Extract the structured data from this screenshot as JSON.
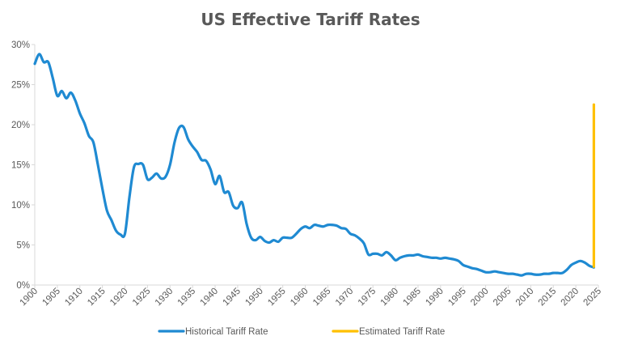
{
  "chart_data": {
    "type": "line",
    "title": "US Effective Tariff Rates",
    "xlabel": "",
    "ylabel": "",
    "xlim": [
      1900,
      2025
    ],
    "ylim": [
      0,
      30
    ],
    "x_ticks": [
      "1900",
      "1905",
      "1910",
      "1915",
      "1920",
      "1925",
      "1930",
      "1935",
      "1940",
      "1945",
      "1950",
      "1955",
      "1960",
      "1965",
      "1970",
      "1975",
      "1980",
      "1985",
      "1990",
      "1995",
      "2000",
      "2005",
      "2010",
      "2015",
      "2020",
      "2025"
    ],
    "y_ticks": [
      "0%",
      "5%",
      "10%",
      "15%",
      "20%",
      "25%",
      "30%"
    ],
    "grid": false,
    "legend_position": "bottom",
    "series": [
      {
        "name": "Historical Tariff Rate",
        "color": "#1f8ad2",
        "x": [
          1900,
          1901,
          1902,
          1903,
          1904,
          1905,
          1906,
          1907,
          1908,
          1909,
          1910,
          1911,
          1912,
          1913,
          1914,
          1915,
          1916,
          1917,
          1918,
          1919,
          1920,
          1921,
          1922,
          1923,
          1924,
          1925,
          1926,
          1927,
          1928,
          1929,
          1930,
          1931,
          1932,
          1933,
          1934,
          1935,
          1936,
          1937,
          1938,
          1939,
          1940,
          1941,
          1942,
          1943,
          1944,
          1945,
          1946,
          1947,
          1948,
          1949,
          1950,
          1951,
          1952,
          1953,
          1954,
          1955,
          1956,
          1957,
          1958,
          1959,
          1960,
          1961,
          1962,
          1963,
          1964,
          1965,
          1966,
          1967,
          1968,
          1969,
          1970,
          1971,
          1972,
          1973,
          1974,
          1975,
          1976,
          1977,
          1978,
          1979,
          1980,
          1981,
          1982,
          1983,
          1984,
          1985,
          1986,
          1987,
          1988,
          1989,
          1990,
          1991,
          1992,
          1993,
          1994,
          1995,
          1996,
          1997,
          1998,
          1999,
          2000,
          2001,
          2002,
          2003,
          2004,
          2005,
          2006,
          2007,
          2008,
          2009,
          2010,
          2011,
          2012,
          2013,
          2014,
          2015,
          2016,
          2017,
          2018,
          2019,
          2020,
          2021,
          2022,
          2023,
          2024
        ],
        "y": [
          27.6,
          28.8,
          27.8,
          27.8,
          25.8,
          23.6,
          24.2,
          23.3,
          24.0,
          23.0,
          21.4,
          20.2,
          18.6,
          17.8,
          15.0,
          12.0,
          9.3,
          8.1,
          6.8,
          6.3,
          6.4,
          11.0,
          14.7,
          15.1,
          15.0,
          13.2,
          13.4,
          13.9,
          13.3,
          13.5,
          15.0,
          17.8,
          19.6,
          19.7,
          18.2,
          17.3,
          16.6,
          15.6,
          15.5,
          14.4,
          12.6,
          13.6,
          11.6,
          11.6,
          9.9,
          9.6,
          10.3,
          7.6,
          5.9,
          5.6,
          6.0,
          5.5,
          5.3,
          5.6,
          5.4,
          5.9,
          5.9,
          5.9,
          6.4,
          7.0,
          7.3,
          7.1,
          7.5,
          7.4,
          7.3,
          7.5,
          7.5,
          7.4,
          7.1,
          7.0,
          6.4,
          6.2,
          5.8,
          5.2,
          3.8,
          3.9,
          3.9,
          3.7,
          4.1,
          3.7,
          3.1,
          3.4,
          3.6,
          3.7,
          3.7,
          3.8,
          3.6,
          3.5,
          3.4,
          3.4,
          3.3,
          3.4,
          3.3,
          3.2,
          3.0,
          2.5,
          2.3,
          2.1,
          2.0,
          1.8,
          1.6,
          1.6,
          1.7,
          1.6,
          1.5,
          1.4,
          1.4,
          1.3,
          1.2,
          1.4,
          1.4,
          1.3,
          1.3,
          1.4,
          1.4,
          1.5,
          1.5,
          1.5,
          1.9,
          2.5,
          2.8,
          3.0,
          2.8,
          2.4,
          2.2
        ]
      },
      {
        "name": "Estimated Tariff Rate",
        "color": "#ffc000",
        "x": [
          2024,
          2024
        ],
        "y": [
          2.3,
          22.5
        ]
      }
    ]
  }
}
